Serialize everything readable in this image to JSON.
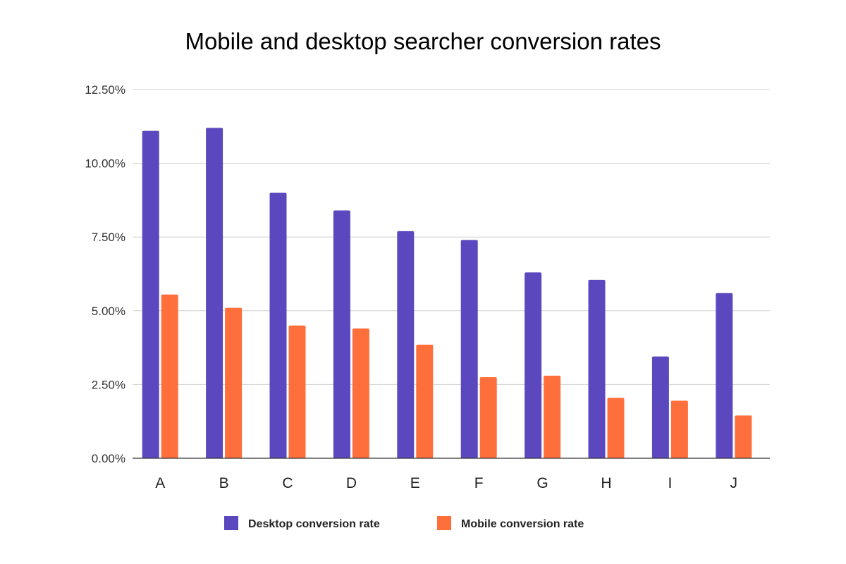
{
  "chart_data": {
    "type": "bar",
    "title": "Mobile and desktop searcher conversion rates",
    "xlabel": "",
    "ylabel": "",
    "categories": [
      "A",
      "B",
      "C",
      "D",
      "E",
      "F",
      "G",
      "H",
      "I",
      "J"
    ],
    "ylim": [
      0,
      12.5
    ],
    "yticks": [
      0,
      2.5,
      5,
      7.5,
      10,
      12.5
    ],
    "ytick_labels": [
      "0.00%",
      "2.50%",
      "5.00%",
      "7.50%",
      "10.00%",
      "12.50%"
    ],
    "grid": true,
    "legend_position": "bottom",
    "series": [
      {
        "name": "Desktop conversion rate",
        "color": "#5b48bf",
        "values": [
          11.1,
          11.2,
          9.0,
          8.4,
          7.7,
          7.4,
          6.3,
          6.05,
          3.45,
          5.6
        ]
      },
      {
        "name": "Mobile conversion rate",
        "color": "#ff6f3c",
        "values": [
          5.55,
          5.1,
          4.5,
          4.4,
          3.85,
          2.75,
          2.8,
          2.05,
          1.95,
          1.45
        ]
      }
    ]
  }
}
